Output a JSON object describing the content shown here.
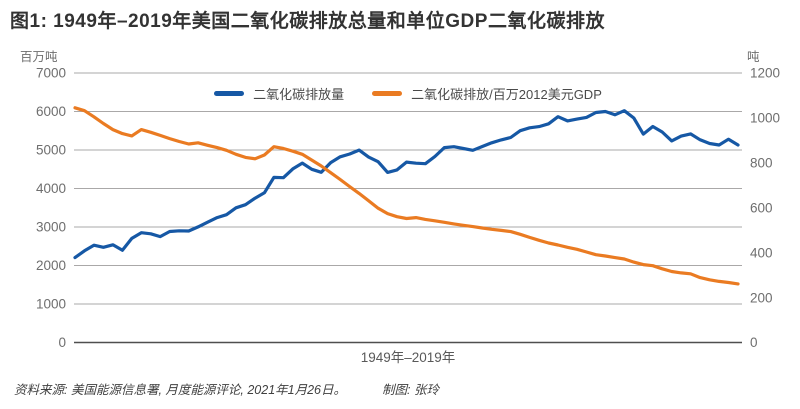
{
  "title": "图1: 1949年–2019年美国二氧化碳排放总量和单位GDP二氧化碳排放",
  "colors": {
    "co2_total": "#1658a5",
    "co2_intensity": "#ea7b22",
    "grid": "#aaa8a8",
    "baseline": "#4f4f4f",
    "tick_text": "#6e6e6e"
  },
  "legend": {
    "items": [
      {
        "label": "二氧化碳排放量",
        "color": "#1658a5"
      },
      {
        "label": "二氧化碳排放/百万2012美元GDP",
        "color": "#ea7b22"
      }
    ]
  },
  "left_axis": {
    "unit": "百万吨",
    "min": 0,
    "max": 7000,
    "ticks": [
      7000,
      6000,
      5000,
      4000,
      3000,
      2000,
      1000,
      0
    ]
  },
  "right_axis": {
    "unit": "吨",
    "min": 0,
    "max": 1200,
    "ticks": [
      1200,
      1000,
      800,
      600,
      400,
      200,
      0
    ]
  },
  "x_axis": {
    "label": "1949年–2019年"
  },
  "footer": {
    "source": "资料来源: 美国能源信息署, 月度能源评论, 2021年1月26日。",
    "credit": "制图: 张玲"
  },
  "chart_data": {
    "type": "line",
    "title": "图1: 1949年–2019年美国二氧化碳排放总量和单位GDP二氧化碳排放",
    "xlabel": "1949年–2019年",
    "grid": "horizontal",
    "legend_position": "top-center",
    "left_ylabel": "百万吨",
    "right_ylabel": "吨",
    "left_ylim": [
      0,
      7000
    ],
    "right_ylim": [
      0,
      1200
    ],
    "x": [
      1949,
      1950,
      1951,
      1952,
      1953,
      1954,
      1955,
      1956,
      1957,
      1958,
      1959,
      1960,
      1961,
      1962,
      1963,
      1964,
      1965,
      1966,
      1967,
      1968,
      1969,
      1970,
      1971,
      1972,
      1973,
      1974,
      1975,
      1976,
      1977,
      1978,
      1979,
      1980,
      1981,
      1982,
      1983,
      1984,
      1985,
      1986,
      1987,
      1988,
      1989,
      1990,
      1991,
      1992,
      1993,
      1994,
      1995,
      1996,
      1997,
      1998,
      1999,
      2000,
      2001,
      2002,
      2003,
      2004,
      2005,
      2006,
      2007,
      2008,
      2009,
      2010,
      2011,
      2012,
      2013,
      2014,
      2015,
      2016,
      2017,
      2018,
      2019
    ],
    "series": [
      {
        "name": "二氧化碳排放量",
        "axis": "left",
        "unit": "百万吨",
        "color": "#1658a5",
        "values": [
          2206,
          2382,
          2526,
          2473,
          2538,
          2394,
          2703,
          2851,
          2824,
          2750,
          2883,
          2902,
          2895,
          3002,
          3124,
          3243,
          3320,
          3500,
          3578,
          3749,
          3889,
          4288,
          4281,
          4510,
          4660,
          4500,
          4420,
          4673,
          4823,
          4896,
          4997,
          4815,
          4695,
          4417,
          4483,
          4685,
          4658,
          4645,
          4831,
          5062,
          5086,
          5040,
          4992,
          5091,
          5188,
          5262,
          5325,
          5502,
          5577,
          5609,
          5680,
          5866,
          5756,
          5803,
          5846,
          5974,
          5999,
          5914,
          6022,
          5830,
          5414,
          5610,
          5467,
          5237,
          5360,
          5417,
          5265,
          5170,
          5131,
          5281,
          5130
        ]
      },
      {
        "name": "二氧化碳排放/百万2012美元GDP",
        "axis": "right",
        "unit": "吨",
        "color": "#ea7b22",
        "values": [
          1045,
          1032,
          1005,
          975,
          948,
          930,
          920,
          948,
          936,
          922,
          908,
          895,
          884,
          889,
          878,
          868,
          856,
          838,
          824,
          818,
          835,
          872,
          864,
          852,
          838,
          812,
          786,
          756,
          726,
          694,
          664,
          631,
          598,
          574,
          560,
          552,
          556,
          548,
          542,
          535,
          528,
          522,
          516,
          510,
          504,
          499,
          494,
          482,
          468,
          455,
          443,
          434,
          424,
          415,
          403,
          391,
          385,
          378,
          372,
          358,
          347,
          342,
          328,
          316,
          310,
          306,
          289,
          279,
          272,
          267,
          261
        ]
      }
    ]
  }
}
